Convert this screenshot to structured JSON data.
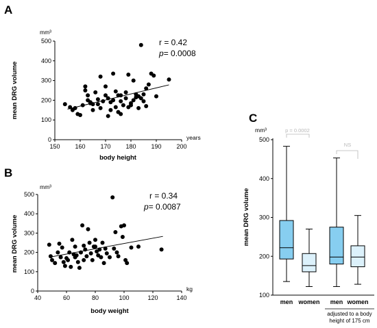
{
  "chart_data": [
    {
      "panel": "A",
      "type": "scatter",
      "xlabel": "body height",
      "xunit": "years",
      "ylabel": "mean DRG volume",
      "yunit": "mm³",
      "xlim": [
        150,
        200
      ],
      "ylim": [
        0,
        500
      ],
      "xticks": [
        "150",
        "160",
        "170",
        "180",
        "190",
        "200"
      ],
      "yticks": [
        "0",
        "100",
        "200",
        "300",
        "400",
        "500"
      ],
      "annotation_r": "r = 0.42",
      "annotation_p_label": "p",
      "annotation_p_value": "= 0.0008",
      "regression": {
        "x": [
          155,
          195
        ],
        "y": [
          155,
          278
        ]
      },
      "points": [
        [
          154,
          180
        ],
        [
          156,
          165
        ],
        [
          157,
          150
        ],
        [
          158,
          160
        ],
        [
          159,
          130
        ],
        [
          160,
          125
        ],
        [
          161,
          175
        ],
        [
          162,
          270
        ],
        [
          162,
          250
        ],
        [
          163,
          200
        ],
        [
          164,
          190
        ],
        [
          164,
          185
        ],
        [
          165,
          180
        ],
        [
          165,
          150
        ],
        [
          166,
          240
        ],
        [
          167,
          205
        ],
        [
          168,
          160
        ],
        [
          168,
          320
        ],
        [
          169,
          195
        ],
        [
          170,
          270
        ],
        [
          170,
          225
        ],
        [
          171,
          120
        ],
        [
          172,
          190
        ],
        [
          172,
          150
        ],
        [
          173,
          335
        ],
        [
          173,
          200
        ],
        [
          174,
          245
        ],
        [
          174,
          165
        ],
        [
          175,
          140
        ],
        [
          175,
          225
        ],
        [
          176,
          130
        ],
        [
          176,
          195
        ],
        [
          177,
          175
        ],
        [
          178,
          210
        ],
        [
          178,
          240
        ],
        [
          179,
          330
        ],
        [
          179,
          165
        ],
        [
          180,
          185
        ],
        [
          181,
          300
        ],
        [
          181,
          200
        ],
        [
          182,
          215
        ],
        [
          182,
          230
        ],
        [
          183,
          160
        ],
        [
          183,
          220
        ],
        [
          184,
          480
        ],
        [
          184,
          210
        ],
        [
          185,
          230
        ],
        [
          185,
          195
        ],
        [
          186,
          170
        ],
        [
          186,
          260
        ],
        [
          187,
          280
        ],
        [
          188,
          335
        ],
        [
          189,
          325
        ],
        [
          190,
          220
        ],
        [
          195,
          305
        ],
        [
          171,
          210
        ],
        [
          176,
          225
        ],
        [
          180,
          175
        ],
        [
          167,
          180
        ],
        [
          163,
          225
        ]
      ]
    },
    {
      "panel": "B",
      "type": "scatter",
      "xlabel": "body weight",
      "xunit": "kg",
      "ylabel": "mean DRG volume",
      "yunit": "mm³",
      "xlim": [
        40,
        140
      ],
      "ylim": [
        0,
        500
      ],
      "xticks": [
        "40",
        "60",
        "80",
        "100",
        "120",
        "140"
      ],
      "yticks": [
        "0",
        "100",
        "200",
        "300",
        "400",
        "500"
      ],
      "annotation_r": "r = 0.34",
      "annotation_p_label": "p",
      "annotation_p_value": "= 0.0087",
      "regression": {
        "x": [
          48,
          127
        ],
        "y": [
          175,
          283
        ]
      },
      "points": [
        [
          48,
          240
        ],
        [
          49,
          180
        ],
        [
          50,
          160
        ],
        [
          52,
          145
        ],
        [
          54,
          200
        ],
        [
          55,
          245
        ],
        [
          56,
          175
        ],
        [
          57,
          225
        ],
        [
          58,
          150
        ],
        [
          59,
          130
        ],
        [
          60,
          170
        ],
        [
          61,
          160
        ],
        [
          62,
          200
        ],
        [
          63,
          125
        ],
        [
          64,
          265
        ],
        [
          65,
          190
        ],
        [
          66,
          230
        ],
        [
          67,
          185
        ],
        [
          68,
          150
        ],
        [
          69,
          120
        ],
        [
          70,
          200
        ],
        [
          71,
          340
        ],
        [
          72,
          235
        ],
        [
          73,
          215
        ],
        [
          74,
          180
        ],
        [
          75,
          320
        ],
        [
          76,
          250
        ],
        [
          77,
          195
        ],
        [
          78,
          160
        ],
        [
          79,
          230
        ],
        [
          80,
          265
        ],
        [
          81,
          205
        ],
        [
          82,
          185
        ],
        [
          83,
          215
        ],
        [
          84,
          175
        ],
        [
          85,
          250
        ],
        [
          86,
          145
        ],
        [
          87,
          220
        ],
        [
          88,
          195
        ],
        [
          90,
          175
        ],
        [
          92,
          485
        ],
        [
          93,
          220
        ],
        [
          94,
          305
        ],
        [
          95,
          200
        ],
        [
          96,
          180
        ],
        [
          98,
          335
        ],
        [
          99,
          280
        ],
        [
          100,
          340
        ],
        [
          101,
          160
        ],
        [
          102,
          145
        ],
        [
          105,
          225
        ],
        [
          110,
          230
        ],
        [
          126,
          215
        ],
        [
          66,
          175
        ],
        [
          72,
          160
        ],
        [
          80,
          230
        ]
      ]
    },
    {
      "panel": "C",
      "type": "box",
      "ylabel": "mean DRG volume",
      "yunit": "mm³",
      "ylim": [
        100,
        500
      ],
      "yticks": [
        "100",
        "200",
        "300",
        "400",
        "500"
      ],
      "categories": [
        "men",
        "women",
        "men",
        "women"
      ],
      "group_label_line1": "adjusted to a body",
      "group_label_line2": "height of 175 cm",
      "colors": [
        "#87cef0",
        "#dcf1fb",
        "#87cef0",
        "#dcf1fb"
      ],
      "boxes": [
        {
          "min": 135,
          "q1": 193,
          "median": 222,
          "q3": 292,
          "max": 483
        },
        {
          "min": 122,
          "q1": 160,
          "median": 176,
          "q3": 207,
          "max": 270
        },
        {
          "min": 122,
          "q1": 180,
          "median": 198,
          "q3": 275,
          "max": 453
        },
        {
          "min": 128,
          "q1": 173,
          "median": 198,
          "q3": 227,
          "max": 305
        }
      ],
      "comparison_1": "p = 0.0002",
      "comparison_2": "NS"
    }
  ]
}
